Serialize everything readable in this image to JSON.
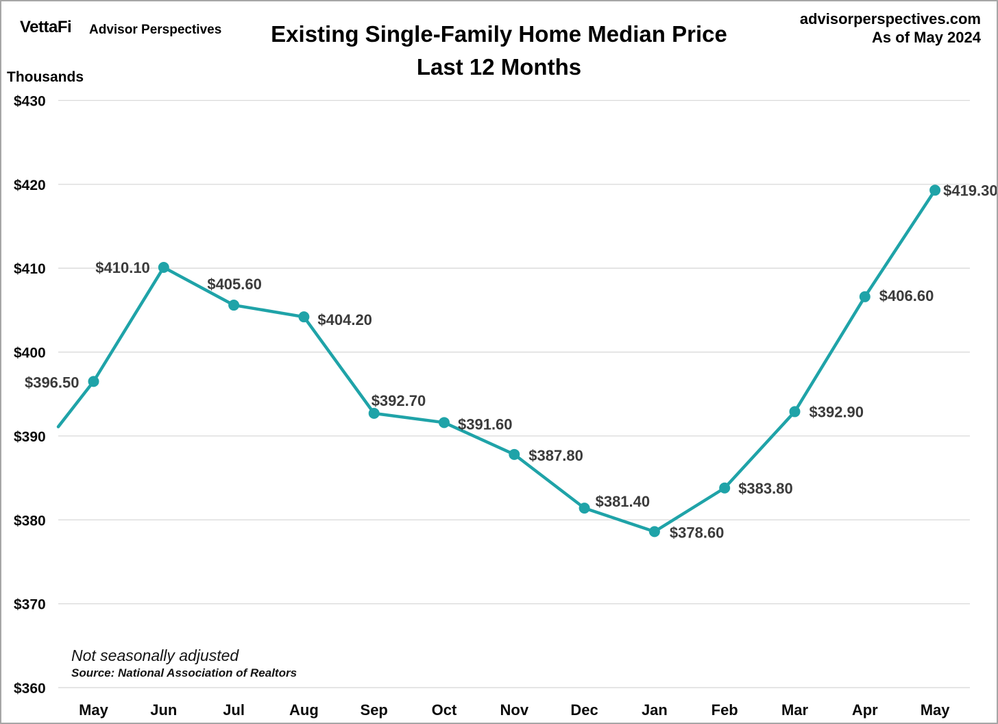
{
  "header": {
    "logo": "VettaFi",
    "brand": "Advisor Perspectives",
    "title_line1": "Existing Single-Family Home Median Price",
    "title_line2": "Last 12 Months",
    "website": "advisorperspectives.com",
    "as_of": "As of May 2024"
  },
  "y_axis_unit": "Thousands",
  "footnotes": {
    "note": "Not seasonally adjusted",
    "source": "Source: National Association of Realtors"
  },
  "chart_data": {
    "type": "line",
    "title": "Existing Single-Family Home Median Price — Last 12 Months",
    "categories": [
      "May",
      "Jun",
      "Jul",
      "Aug",
      "Sep",
      "Oct",
      "Nov",
      "Dec",
      "Jan",
      "Feb",
      "Mar",
      "Apr",
      "May"
    ],
    "values": [
      396.5,
      410.1,
      405.6,
      404.2,
      392.7,
      391.6,
      387.8,
      381.4,
      378.6,
      383.8,
      392.9,
      406.6,
      419.3
    ],
    "point_labels": [
      "$396.50",
      "$410.10",
      "$405.60",
      "$404.20",
      "$392.70",
      "$391.60",
      "$387.80",
      "$381.40",
      "$378.60",
      "$383.80",
      "$392.90",
      "$406.60",
      "$419.30"
    ],
    "y_ticks": [
      "$430",
      "$420",
      "$410",
      "$400",
      "$390",
      "$380",
      "$370",
      "$360"
    ],
    "y_tick_values": [
      430,
      420,
      410,
      400,
      390,
      380,
      370,
      360
    ],
    "ylim": [
      360,
      430
    ],
    "ylabel": "Thousands",
    "xlabel": "",
    "grid": "horizontal",
    "legend": "none",
    "marker": "circle",
    "entry_value_at_left_edge": 391.1,
    "line_color": "#1FA3A8",
    "label_color": "#3B3B3B",
    "grid_color": "#D9D9D9",
    "axis_text_color": "#0A0A0A"
  }
}
